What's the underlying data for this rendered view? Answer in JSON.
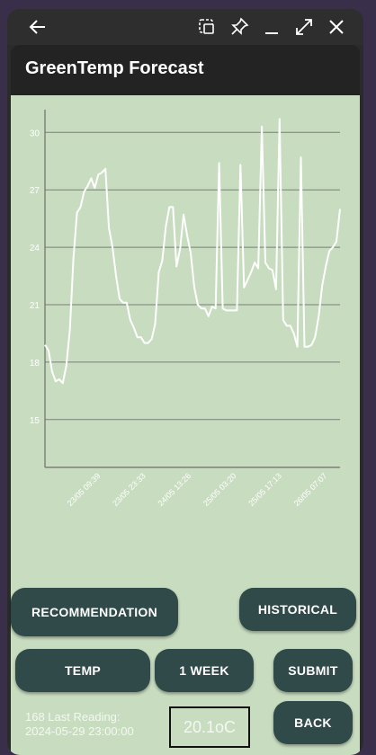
{
  "app": {
    "title": "GreenTemp Forecast"
  },
  "window_controls": [
    "back-arrow-icon",
    "screenshot-icon",
    "pin-icon",
    "minimize-icon",
    "maximize-icon",
    "close-icon"
  ],
  "chart_data": {
    "type": "line",
    "title": "",
    "xlabel": "",
    "ylabel": "",
    "ylim": [
      12.5,
      31
    ],
    "y_ticks": [
      "30",
      "27",
      "24",
      "21",
      "18",
      "15"
    ],
    "x_ticks": [
      "23/05 09:39",
      "23/05 23:33",
      "24/05 13:26",
      "25/05 03:20",
      "25/05 17:13",
      "26/05 07:07"
    ],
    "grid": "horizontal",
    "line_color": "#ffffff",
    "series": [
      {
        "values": [
          18.9,
          18.6,
          17.5,
          17.0,
          17.1,
          16.9,
          17.8,
          19.7,
          23.4,
          25.8,
          26.1,
          26.9,
          27.2,
          27.6,
          27.1,
          27.8,
          27.9,
          28.1,
          25.0,
          24.0,
          22.5,
          21.3,
          21.1,
          21.1,
          20.2,
          19.8,
          19.3,
          19.3,
          19.0,
          19.0,
          19.2,
          20.0,
          22.7,
          23.3,
          25.1,
          26.1,
          26.1,
          23.0,
          23.9,
          25.7,
          24.6,
          23.7,
          21.9,
          21.0,
          20.8,
          20.8,
          20.4,
          20.9,
          20.8,
          28.4,
          20.8,
          20.7,
          20.7,
          20.7,
          20.7,
          28.3,
          21.9,
          22.3,
          22.7,
          23.2,
          22.9,
          30.3,
          23.2,
          22.9,
          22.8,
          21.8,
          30.7,
          20.2,
          19.9,
          19.9,
          19.5,
          18.8,
          28.7,
          18.8,
          18.8,
          18.9,
          19.3,
          20.4,
          22.0,
          23.0,
          23.8,
          24.0,
          24.3,
          26.0
        ]
      }
    ]
  },
  "buttons": {
    "recommendation": "RECOMMENDATION",
    "historical": "HISTORICAL",
    "temp": "TEMP",
    "week": "1 WEEK",
    "submit": "SUBMIT",
    "back": "BACK"
  },
  "status": {
    "last_reading_line1": "168 Last Reading:",
    "last_reading_line2": "2024-05-29 23:00:00",
    "current_temp": "20.1oC"
  }
}
